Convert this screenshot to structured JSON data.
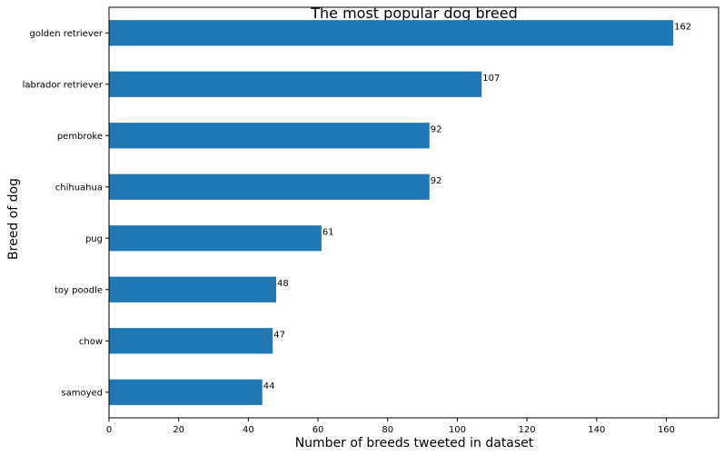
{
  "chart_data": {
    "type": "bar",
    "orientation": "horizontal",
    "title": "The most popular dog breed",
    "xlabel": "Number of breeds tweeted in dataset",
    "ylabel": "Breed of dog",
    "categories": [
      "golden retriever",
      "labrador retriever",
      "pembroke",
      "chihuahua",
      "pug",
      "toy poodle",
      "chow",
      "samoyed"
    ],
    "values": [
      162,
      107,
      92,
      92,
      61,
      48,
      47,
      44
    ],
    "data_labels": [
      "162",
      "107",
      "92",
      "92",
      "61",
      "48",
      "47",
      "44"
    ],
    "xlim": [
      0,
      175
    ],
    "xticks": [
      0,
      20,
      40,
      60,
      80,
      100,
      120,
      140,
      160
    ],
    "xtick_labels": [
      "0",
      "20",
      "40",
      "60",
      "80",
      "100",
      "120",
      "140",
      "160"
    ],
    "bar_color": "#1f77b4",
    "grid": false,
    "legend": "none"
  }
}
